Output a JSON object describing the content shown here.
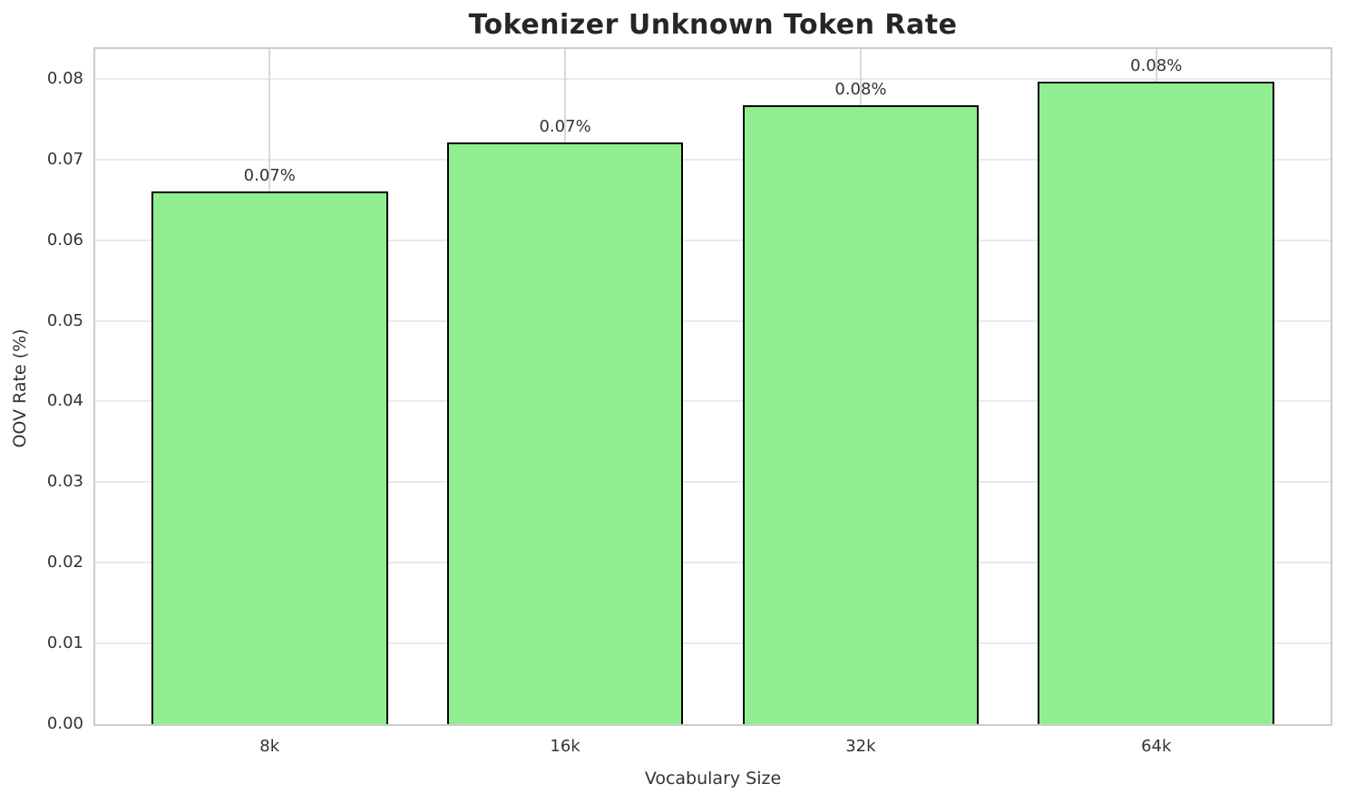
{
  "chart_data": {
    "type": "bar",
    "title": "Tokenizer Unknown Token Rate",
    "xlabel": "Vocabulary Size",
    "ylabel": "OOV Rate (%)",
    "categories": [
      "8k",
      "16k",
      "32k",
      "64k"
    ],
    "values": [
      0.066,
      0.0721,
      0.0767,
      0.0797
    ],
    "bar_labels": [
      "0.07%",
      "0.07%",
      "0.08%",
      "0.08%"
    ],
    "yticks": [
      0,
      0.01,
      0.02,
      0.03,
      0.04,
      0.05,
      0.06,
      0.07,
      0.08
    ],
    "ytick_labels": [
      "0.00",
      "0.01",
      "0.02",
      "0.03",
      "0.04",
      "0.05",
      "0.06",
      "0.07",
      "0.08"
    ],
    "ylim": [
      0,
      0.0837
    ],
    "xlim": [
      -0.59,
      3.59
    ],
    "bar_width": 0.8,
    "grid": true,
    "legend": null,
    "colors": {
      "bar_fill": "#90EE90",
      "bar_edge": "#000000",
      "grid_horizontal": "#eaeaea",
      "grid_vertical": "#d9d9d9",
      "spine": "#cccccc",
      "text": "#333333",
      "title_text": "#262626"
    }
  }
}
